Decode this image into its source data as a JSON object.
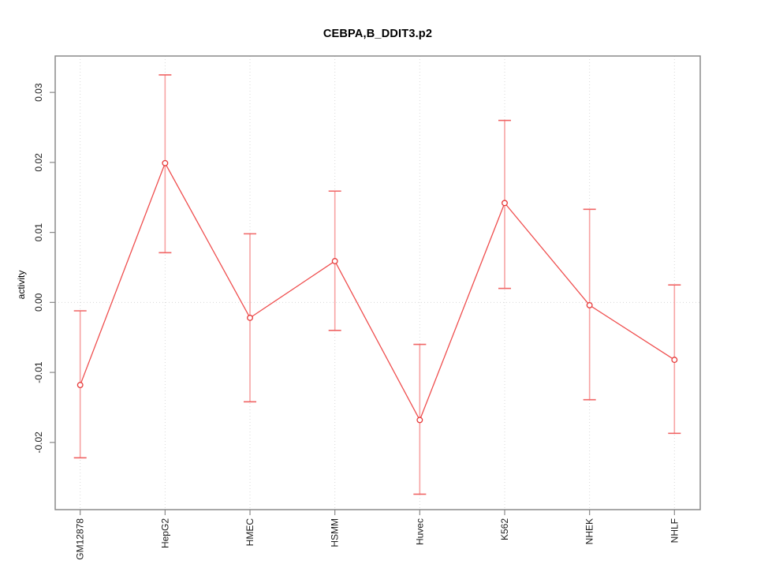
{
  "chart_data": {
    "type": "line",
    "title": "CEBPA,B_DDIT3.p2",
    "xlabel": "",
    "ylabel": "activity",
    "categories": [
      "GM12878",
      "HepG2",
      "HMEC",
      "HSMM",
      "Huvec",
      "K562",
      "NHEK",
      "NHLF"
    ],
    "series": [
      {
        "name": "activity",
        "values": [
          -0.0118,
          0.0199,
          -0.0022,
          0.0059,
          -0.0168,
          0.0142,
          -0.0004,
          -0.0082
        ],
        "upper": [
          -0.0012,
          0.0325,
          0.0098,
          0.0159,
          -0.006,
          0.026,
          0.0133,
          0.0025
        ],
        "lower": [
          -0.0222,
          0.0071,
          -0.0142,
          -0.004,
          -0.0274,
          0.002,
          -0.0139,
          -0.0187
        ]
      }
    ],
    "yticks": [
      0.03,
      0.02,
      0.01,
      0.0,
      -0.01,
      -0.02
    ],
    "ytick_labels": [
      "0.03",
      "0.02",
      "0.01",
      "0.00",
      "-0.01",
      "-0.02"
    ],
    "ylim": [
      -0.0296,
      0.0352
    ],
    "point_style": "open-circle",
    "error_bars": true,
    "legend": "none",
    "grid": {
      "vertical_dotted_at_each_category": true,
      "horizontal_dotted_at_zero": true
    },
    "colors": {
      "series_line": "#ef4e4e",
      "point_stroke": "#e63939",
      "error_bar_stem": "#f7a3a3",
      "error_bar_cap": "#f06565",
      "grid": "#d8d8d8",
      "box": "#8a8a8a",
      "text": "#1a1a1a"
    }
  }
}
